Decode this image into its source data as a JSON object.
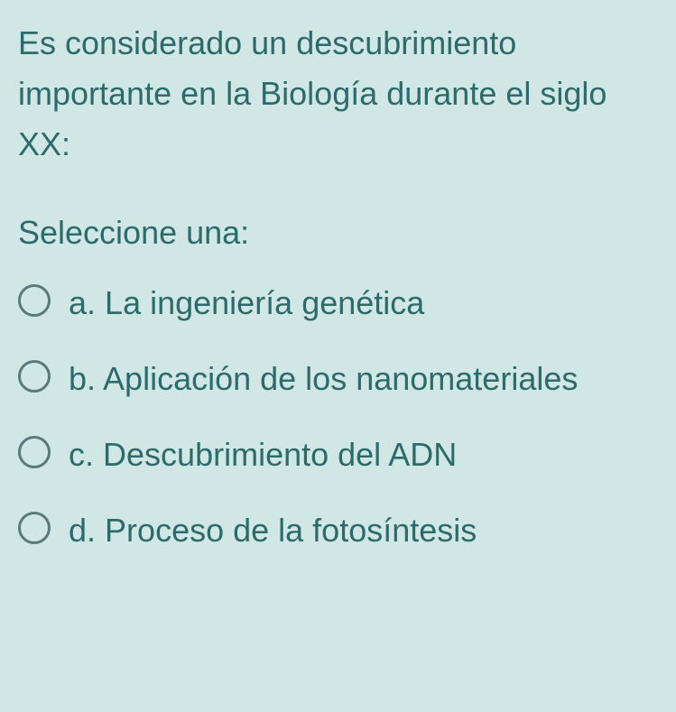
{
  "question": {
    "text": "Es considerado un descubrimiento importante en la Biología durante el siglo XX:",
    "prompt": "Seleccione una:",
    "options": [
      {
        "letter": "a.",
        "text": "La ingeniería genética",
        "selected": false
      },
      {
        "letter": "b.",
        "text": "Aplicación de los nanomateriales",
        "selected": false
      },
      {
        "letter": "c.",
        "text": "Descubrimiento del ADN",
        "selected": false
      },
      {
        "letter": "d.",
        "text": "Proceso de la fotosíntesis",
        "selected": false
      }
    ]
  },
  "colors": {
    "background": "#d1e7e5",
    "text": "#2c6b6b",
    "radio_border": "#5a7a7a"
  },
  "typography": {
    "font_size": 36,
    "font_family": "Arial, Helvetica, sans-serif"
  }
}
